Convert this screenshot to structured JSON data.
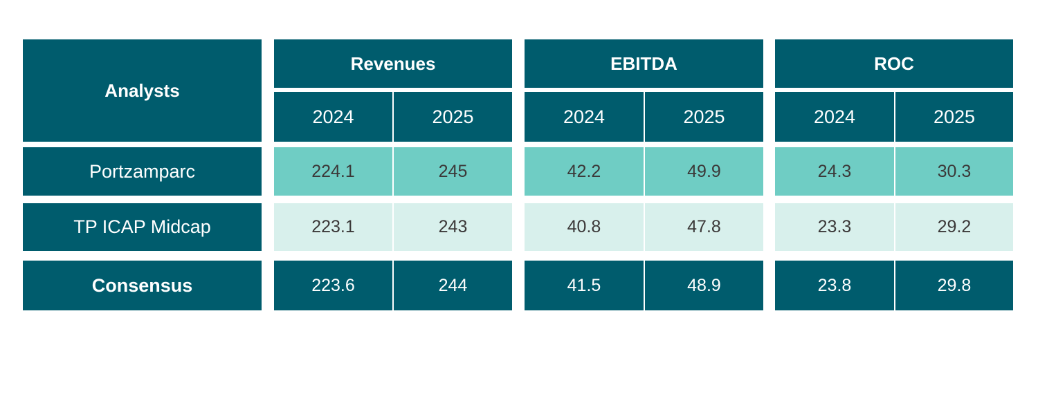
{
  "colors": {
    "dark_teal": "#005C6D",
    "medium_teal": "#6FCDC4",
    "light_teal": "#D8F0EC",
    "dark_text": "#3B3838",
    "white_text": "#FFFFFF"
  },
  "table": {
    "row_header_label": "Analysts",
    "groups": [
      {
        "label": "Revenues",
        "years": [
          "2024",
          "2025"
        ]
      },
      {
        "label": "EBITDA",
        "years": [
          "2024",
          "2025"
        ]
      },
      {
        "label": "ROC",
        "years": [
          "2024",
          "2025"
        ]
      }
    ],
    "rows": [
      {
        "analyst": "Portzamparc",
        "cells": [
          "224.1",
          "245",
          "42.2",
          "49.9",
          "24.3",
          "30.3"
        ]
      },
      {
        "analyst": "TP ICAP Midcap",
        "cells": [
          "223.1",
          "243",
          "40.8",
          "47.8",
          "23.3",
          "29.2"
        ]
      },
      {
        "analyst": "Consensus",
        "cells": [
          "223.6",
          "244",
          "41.5",
          "48.9",
          "23.8",
          "29.8"
        ]
      }
    ]
  },
  "chart_data": {
    "type": "table",
    "columns": [
      "Analysts",
      "Revenues 2024",
      "Revenues 2025",
      "EBITDA 2024",
      "EBITDA 2025",
      "ROC 2024",
      "ROC 2025"
    ],
    "rows": [
      [
        "Portzamparc",
        224.1,
        245,
        42.2,
        49.9,
        24.3,
        30.3
      ],
      [
        "TP ICAP Midcap",
        223.1,
        243,
        40.8,
        47.8,
        23.3,
        29.2
      ],
      [
        "Consensus",
        223.6,
        244,
        41.5,
        48.9,
        23.8,
        29.8
      ]
    ],
    "layout": {
      "column_groups": [
        "Revenues",
        "EBITDA",
        "ROC"
      ],
      "sub_columns_per_group": [
        "2024",
        "2025"
      ],
      "row_styles": [
        "medium-teal",
        "light-teal",
        "dark-teal"
      ]
    }
  }
}
